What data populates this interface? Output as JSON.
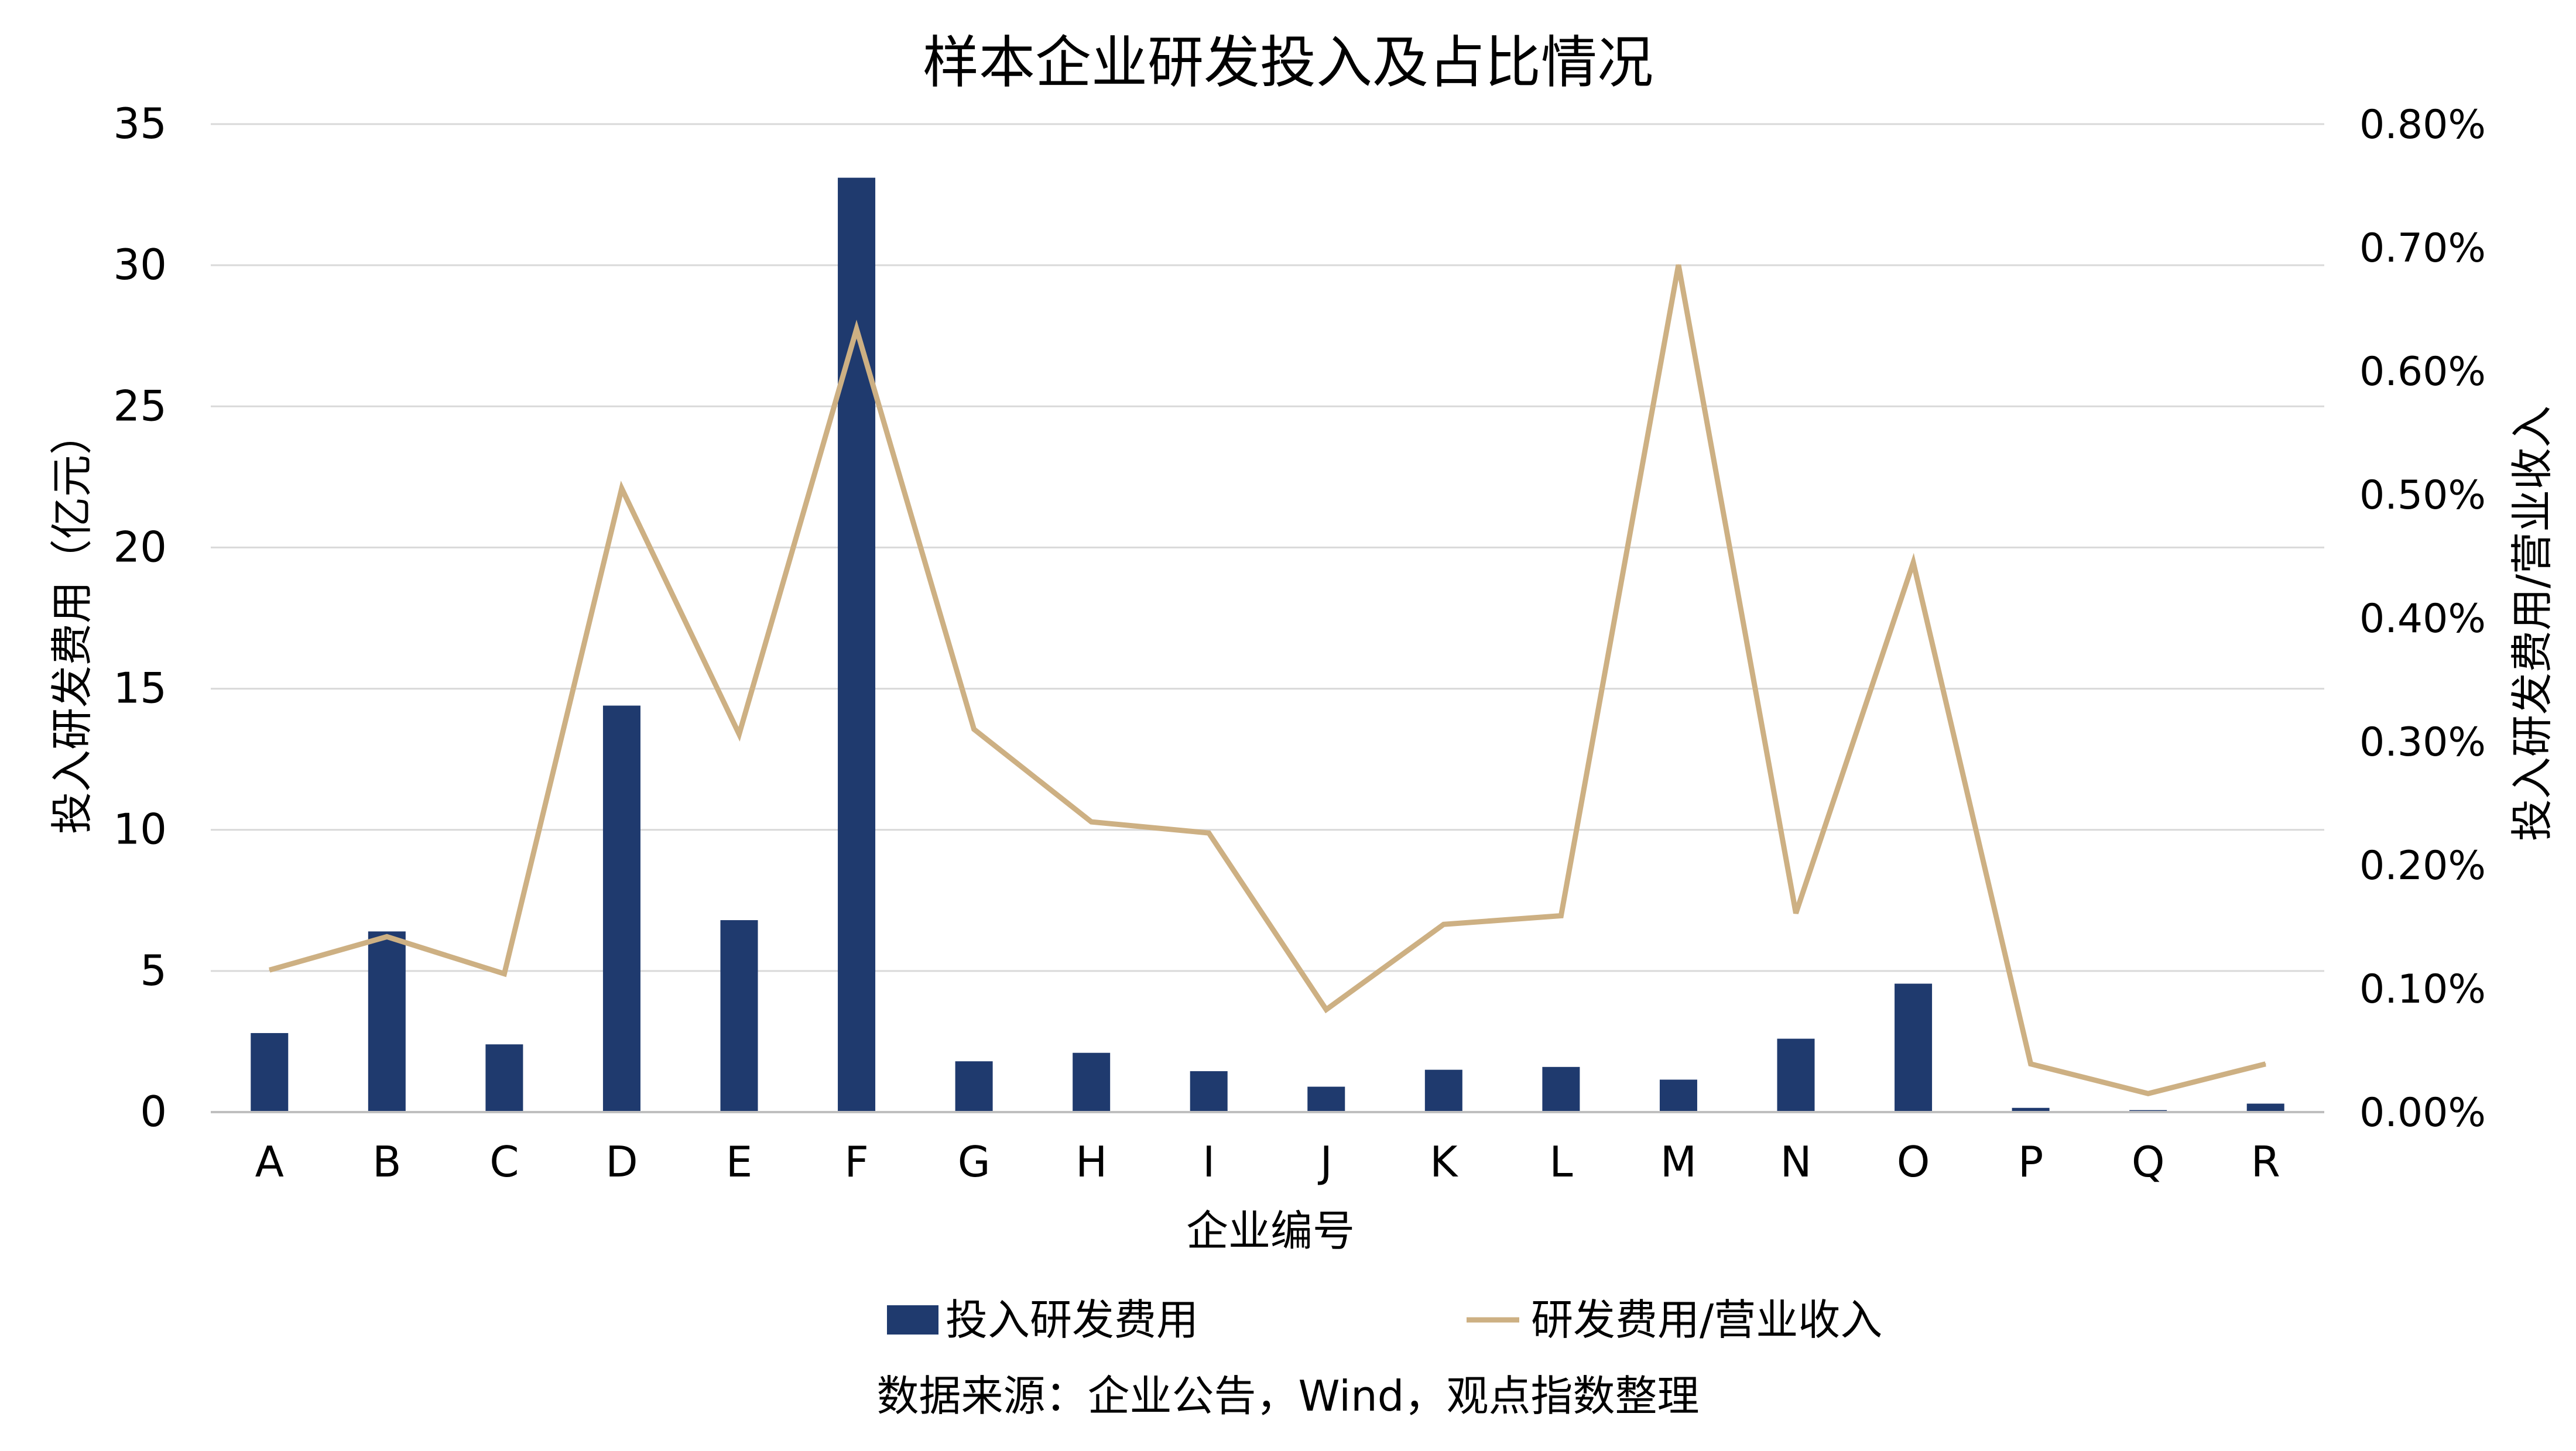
{
  "chart_data": {
    "type": "bar",
    "title": "样本企业研发投入及占比情况",
    "xlabel": "企业编号",
    "ylabel": "投入研发费用（亿元）",
    "y2label": "投入研发费用/营业收入",
    "categories": [
      "A",
      "B",
      "C",
      "D",
      "E",
      "F",
      "G",
      "H",
      "I",
      "J",
      "K",
      "L",
      "M",
      "N",
      "O",
      "P",
      "Q",
      "R"
    ],
    "ylim": [
      0,
      35
    ],
    "yticks": [
      "0",
      "5",
      "10",
      "15",
      "20",
      "25",
      "30",
      "35"
    ],
    "y2lim": [
      0,
      0.8
    ],
    "y2ticks": [
      "0.00%",
      "0.10%",
      "0.20%",
      "0.30%",
      "0.40%",
      "0.50%",
      "0.60%",
      "0.70%",
      "0.80%"
    ],
    "grid": true,
    "legend_position": "bottom",
    "series": [
      {
        "name": "投入研发费用",
        "type": "bar",
        "axis": "left",
        "color": "#1f3a6e",
        "values": [
          2.8,
          6.4,
          2.4,
          14.4,
          6.8,
          33.1,
          1.8,
          2.1,
          1.45,
          0.9,
          1.5,
          1.6,
          1.15,
          2.6,
          4.55,
          0.15,
          0.07,
          0.3
        ]
      },
      {
        "name": "研发费用/营业收入",
        "type": "line",
        "axis": "right",
        "color": "#cdb083",
        "values": [
          0.115,
          0.142,
          0.112,
          0.505,
          0.306,
          0.634,
          0.31,
          0.235,
          0.226,
          0.083,
          0.152,
          0.159,
          0.686,
          0.161,
          0.445,
          0.039,
          0.015,
          0.039
        ]
      }
    ]
  },
  "source_note": "数据来源：企业公告，Wind，观点指数整理"
}
